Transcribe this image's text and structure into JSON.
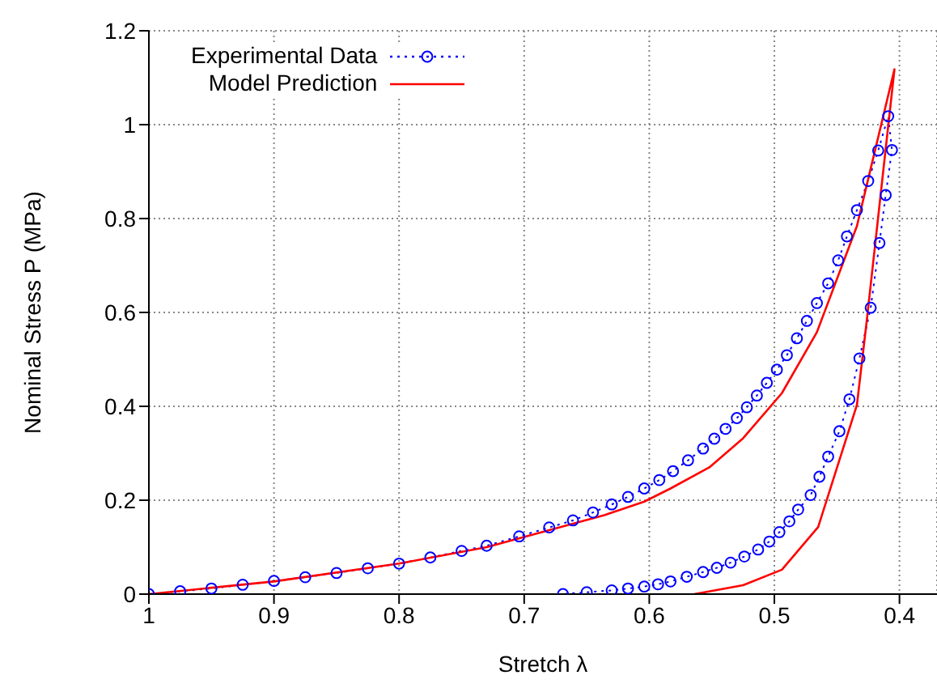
{
  "chart_data": {
    "type": "line",
    "xlabel": "Stretch λ",
    "ylabel": "Nominal Stress P (MPa)",
    "xlim": [
      1,
      0.37
    ],
    "xticks": [
      1,
      0.9,
      0.8,
      0.7,
      0.6,
      0.5,
      0.4
    ],
    "ylim": [
      0,
      1.2
    ],
    "yticks": [
      0,
      0.2,
      0.4,
      0.6,
      0.8,
      1,
      1.2
    ],
    "grid": true,
    "legend": "top left",
    "series": [
      {
        "name": "Experimental Data",
        "color": "#0000ff",
        "marker": "circle",
        "line_style": "dotted",
        "x": [
          1,
          0.975,
          0.95,
          0.925,
          0.9,
          0.875,
          0.85,
          0.825,
          0.8,
          0.775,
          0.75,
          0.73,
          0.704,
          0.68,
          0.661,
          0.645,
          0.63,
          0.617,
          0.604,
          0.592,
          0.581,
          0.569,
          0.557,
          0.548,
          0.539,
          0.53,
          0.522,
          0.514,
          0.506,
          0.498,
          0.49,
          0.482,
          0.474,
          0.466,
          0.457,
          0.449,
          0.442,
          0.434,
          0.425,
          0.417,
          0.409,
          0.406,
          0.411,
          0.416,
          0.423,
          0.432,
          0.44,
          0.448,
          0.457,
          0.464,
          0.471,
          0.481,
          0.488,
          0.496,
          0.504,
          0.513,
          0.524,
          0.535,
          0.546,
          0.557,
          0.57,
          0.583,
          0.593,
          0.604,
          0.617,
          0.63,
          0.65,
          0.669
        ],
        "values": [
          0,
          0.006,
          0.012,
          0.02,
          0.028,
          0.036,
          0.045,
          0.055,
          0.065,
          0.078,
          0.092,
          0.103,
          0.123,
          0.142,
          0.157,
          0.174,
          0.191,
          0.207,
          0.225,
          0.243,
          0.262,
          0.285,
          0.31,
          0.331,
          0.352,
          0.375,
          0.398,
          0.423,
          0.45,
          0.478,
          0.509,
          0.545,
          0.582,
          0.62,
          0.662,
          0.711,
          0.762,
          0.818,
          0.88,
          0.945,
          1.018,
          0.946,
          0.85,
          0.748,
          0.61,
          0.502,
          0.415,
          0.347,
          0.293,
          0.25,
          0.211,
          0.18,
          0.155,
          0.132,
          0.112,
          0.095,
          0.08,
          0.067,
          0.056,
          0.047,
          0.037,
          0.027,
          0.021,
          0.016,
          0.012,
          0.008,
          0.004,
          0
        ]
      },
      {
        "name": "Model Prediction",
        "color": "#ff0000",
        "marker": "none",
        "line_style": "solid",
        "x": [
          1,
          0.9,
          0.8,
          0.73,
          0.636,
          0.604,
          0.583,
          0.552,
          0.525,
          0.494,
          0.466,
          0.434,
          0.404,
          0.426,
          0.434,
          0.465,
          0.494,
          0.525,
          0.564
        ],
        "values": [
          0,
          0.027,
          0.065,
          0.1,
          0.168,
          0.197,
          0.225,
          0.27,
          0.332,
          0.428,
          0.558,
          0.784,
          1.118,
          0.586,
          0.403,
          0.143,
          0.052,
          0.019,
          0
        ]
      }
    ]
  }
}
